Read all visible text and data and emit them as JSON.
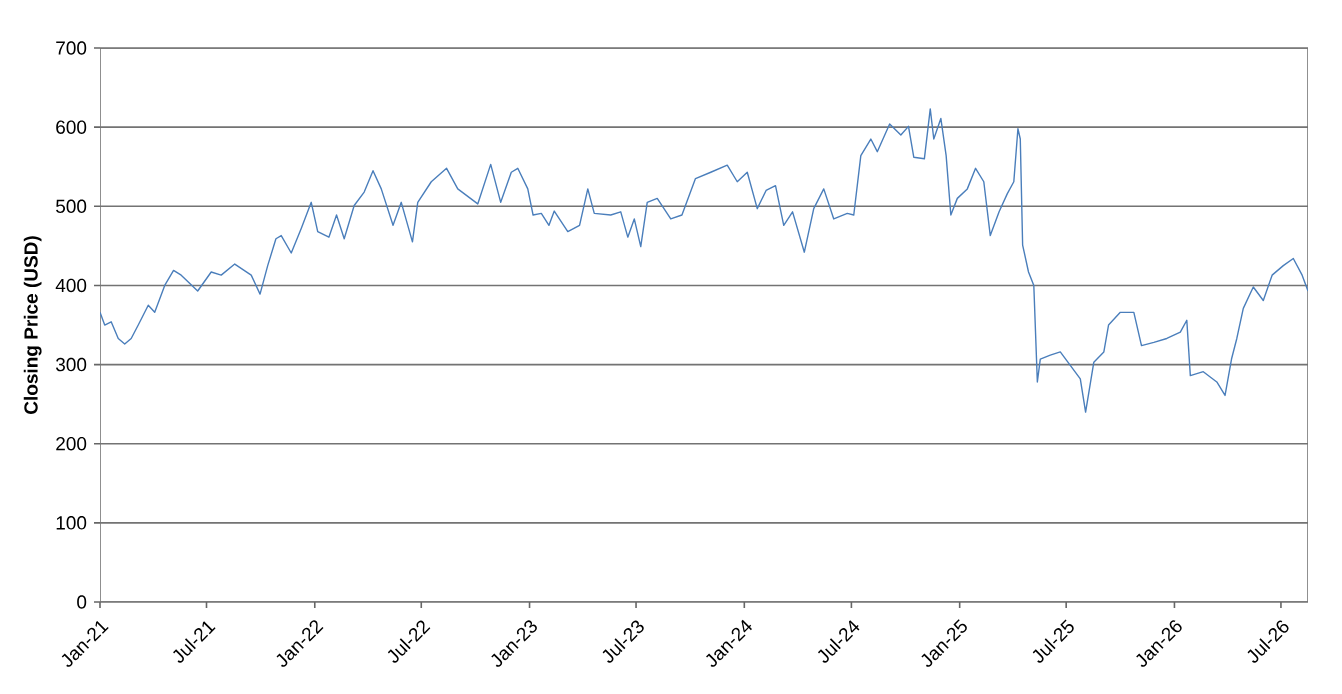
{
  "chart_data": {
    "type": "line",
    "ylabel": "Closing Price (USD)",
    "grid": "y",
    "marker": "none",
    "line_style": "solid",
    "xlim": [
      "2021-01-01",
      "2026-08-16"
    ],
    "ylim": [
      0,
      700
    ],
    "yticks": [
      0,
      100,
      200,
      300,
      400,
      500,
      600,
      700
    ],
    "xticks": [
      {
        "value": "2021-01-01",
        "label": "Jan-21"
      },
      {
        "value": "2021-07-01",
        "label": "Jul-21"
      },
      {
        "value": "2022-01-01",
        "label": "Jan-22"
      },
      {
        "value": "2022-07-01",
        "label": "Jul-22"
      },
      {
        "value": "2023-01-01",
        "label": "Jan-23"
      },
      {
        "value": "2023-07-01",
        "label": "Jul-23"
      },
      {
        "value": "2024-01-01",
        "label": "Jan-24"
      },
      {
        "value": "2024-07-01",
        "label": "Jul-24"
      },
      {
        "value": "2025-01-01",
        "label": "Jan-25"
      },
      {
        "value": "2025-07-01",
        "label": "Jul-25"
      },
      {
        "value": "2026-01-01",
        "label": "Jan-26"
      },
      {
        "value": "2026-07-01",
        "label": "Jul-26"
      }
    ],
    "x": [
      "2021-01-01",
      "2021-01-09",
      "2021-01-20",
      "2021-02-01",
      "2021-02-12",
      "2021-02-23",
      "2021-03-07",
      "2021-03-24",
      "2021-04-04",
      "2021-04-21",
      "2021-05-06",
      "2021-05-19",
      "2021-06-16",
      "2021-07-09",
      "2021-07-26",
      "2021-08-18",
      "2021-09-15",
      "2021-09-30",
      "2021-10-13",
      "2021-10-27",
      "2021-11-05",
      "2021-11-22",
      "2021-12-09",
      "2021-12-26",
      "2022-01-06",
      "2022-01-25",
      "2022-02-07",
      "2022-02-20",
      "2022-03-09",
      "2022-03-26",
      "2022-04-10",
      "2022-04-24",
      "2022-05-14",
      "2022-05-28",
      "2022-06-16",
      "2022-06-25",
      "2022-07-18",
      "2022-08-13",
      "2022-09-01",
      "2022-10-05",
      "2022-10-27",
      "2022-11-13",
      "2022-12-01",
      "2022-12-12",
      "2022-12-29",
      "2023-01-07",
      "2023-01-21",
      "2023-02-03",
      "2023-02-12",
      "2023-03-07",
      "2023-03-27",
      "2023-04-10",
      "2023-04-21",
      "2023-05-19",
      "2023-06-05",
      "2023-06-17",
      "2023-06-28",
      "2023-07-09",
      "2023-07-20",
      "2023-08-06",
      "2023-08-29",
      "2023-09-17",
      "2023-10-10",
      "2023-11-05",
      "2023-12-03",
      "2023-12-20",
      "2024-01-06",
      "2024-01-23",
      "2024-02-07",
      "2024-02-23",
      "2024-03-08",
      "2024-03-23",
      "2024-04-12",
      "2024-04-28",
      "2024-05-15",
      "2024-06-01",
      "2024-06-24",
      "2024-07-05",
      "2024-07-17",
      "2024-08-03",
      "2024-08-14",
      "2024-09-04",
      "2024-09-23",
      "2024-10-06",
      "2024-10-15",
      "2024-11-02",
      "2024-11-12",
      "2024-11-18",
      "2024-11-30",
      "2024-12-09",
      "2024-12-17",
      "2024-12-28",
      "2025-01-14",
      "2025-01-28",
      "2025-02-11",
      "2025-02-22",
      "2025-03-09",
      "2025-03-23",
      "2025-04-03",
      "2025-04-10",
      "2025-04-14",
      "2025-04-18",
      "2025-04-28",
      "2025-05-07",
      "2025-05-13",
      "2025-05-18",
      "2025-06-04",
      "2025-06-21",
      "2025-07-08",
      "2025-07-25",
      "2025-08-03",
      "2025-08-17",
      "2025-09-03",
      "2025-09-11",
      "2025-10-01",
      "2025-10-24",
      "2025-11-06",
      "2025-11-27",
      "2025-12-19",
      "2026-01-11",
      "2026-01-22",
      "2026-01-28",
      "2026-02-19",
      "2026-03-14",
      "2026-03-28",
      "2026-04-08",
      "2026-04-17",
      "2026-04-28",
      "2026-05-15",
      "2026-06-01",
      "2026-06-16",
      "2026-07-05",
      "2026-07-22",
      "2026-08-06",
      "2026-08-16"
    ],
    "series": [
      {
        "color": "#4a7ebb",
        "values": [
          366,
          350,
          354,
          333,
          326,
          333,
          350,
          375,
          366,
          400,
          419,
          413,
          393,
          417,
          413,
          427,
          413,
          389,
          425,
          459,
          463,
          441,
          472,
          505,
          468,
          461,
          489,
          459,
          501,
          518,
          545,
          522,
          476,
          505,
          455,
          505,
          531,
          548,
          522,
          503,
          553,
          505,
          543,
          548,
          522,
          489,
          491,
          476,
          494,
          468,
          476,
          522,
          491,
          489,
          493,
          461,
          484,
          449,
          505,
          510,
          484,
          489,
          535,
          543,
          552,
          531,
          543,
          497,
          520,
          526,
          476,
          493,
          442,
          497,
          522,
          484,
          491,
          489,
          564,
          585,
          569,
          604,
          590,
          601,
          562,
          560,
          623,
          585,
          611,
          564,
          489,
          510,
          522,
          548,
          531,
          463,
          493,
          516,
          531,
          598,
          585,
          451,
          417,
          400,
          278,
          307,
          312,
          316,
          299,
          282,
          240,
          303,
          316,
          350,
          366,
          366,
          324,
          328,
          333,
          341,
          356,
          286,
          291,
          278,
          261,
          307,
          333,
          371,
          398,
          381,
          413,
          425,
          434,
          413,
          393
        ]
      }
    ]
  }
}
